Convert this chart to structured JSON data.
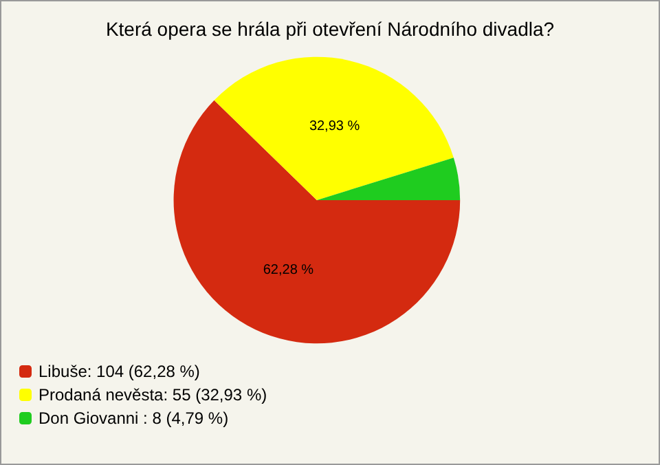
{
  "chart_data": {
    "type": "pie",
    "title": "Která opera se hrála při otevření Národního divadla?",
    "categories": [
      "Libuše: 104 (62,28 %)",
      "Prodaná nevěsta: 55 (32,93 %)",
      "Don Giovanni : 8 (4,79 %)"
    ],
    "values": [
      62.28,
      32.93,
      4.79
    ],
    "colors": [
      "#d42a10",
      "#ffff00",
      "#1fcc1f"
    ],
    "value_labels": [
      "62,28 %",
      "32,93 %",
      null
    ],
    "legend": "bottom left"
  }
}
